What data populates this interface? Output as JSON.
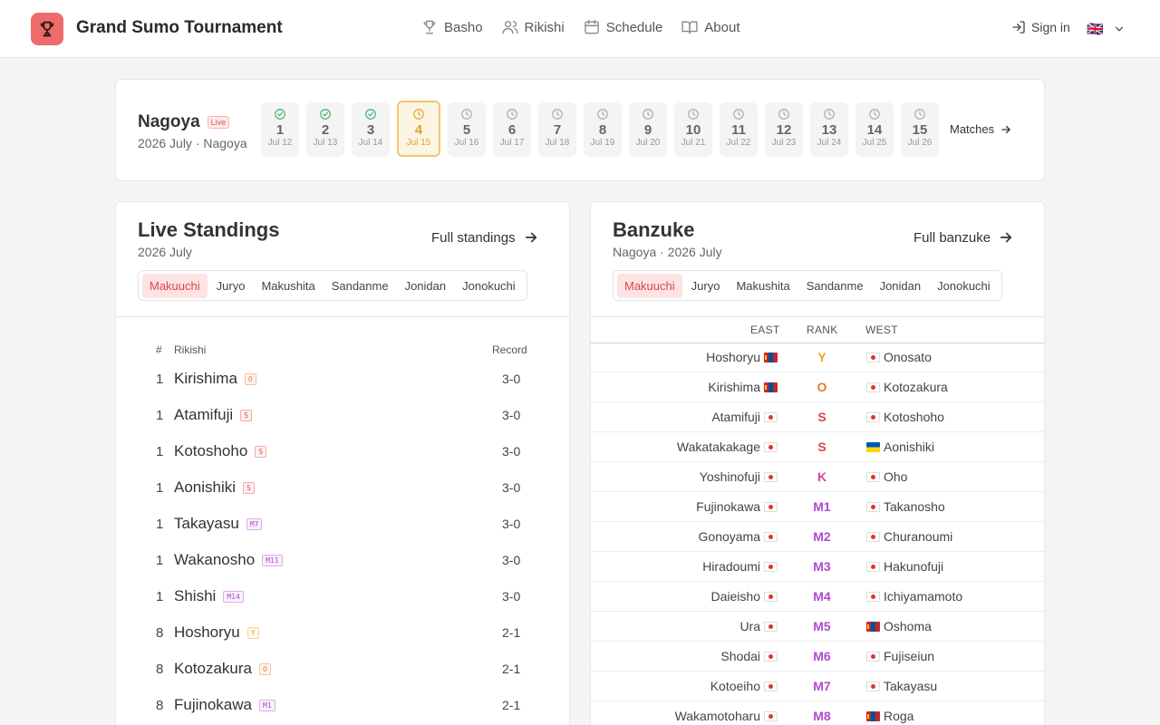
{
  "header": {
    "title": "Grand Sumo Tournament",
    "nav": [
      {
        "label": "Basho",
        "icon": "trophy-icon"
      },
      {
        "label": "Rikishi",
        "icon": "users-icon"
      },
      {
        "label": "Schedule",
        "icon": "calendar-icon"
      },
      {
        "label": "About",
        "icon": "book-icon"
      }
    ],
    "signin": "Sign in",
    "language_flag": "🇬🇧"
  },
  "basho": {
    "name": "Nagoya",
    "live": "Live",
    "subtitle": "2026 July · Nagoya",
    "days": [
      {
        "num": "1",
        "date": "Jul 12",
        "state": "done"
      },
      {
        "num": "2",
        "date": "Jul 13",
        "state": "done"
      },
      {
        "num": "3",
        "date": "Jul 14",
        "state": "done"
      },
      {
        "num": "4",
        "date": "Jul 15",
        "state": "active"
      },
      {
        "num": "5",
        "date": "Jul 16",
        "state": "future"
      },
      {
        "num": "6",
        "date": "Jul 17",
        "state": "future"
      },
      {
        "num": "7",
        "date": "Jul 18",
        "state": "future"
      },
      {
        "num": "8",
        "date": "Jul 19",
        "state": "future"
      },
      {
        "num": "9",
        "date": "Jul 20",
        "state": "future"
      },
      {
        "num": "10",
        "date": "Jul 21",
        "state": "future"
      },
      {
        "num": "11",
        "date": "Jul 22",
        "state": "future"
      },
      {
        "num": "12",
        "date": "Jul 23",
        "state": "future"
      },
      {
        "num": "13",
        "date": "Jul 24",
        "state": "future"
      },
      {
        "num": "14",
        "date": "Jul 25",
        "state": "future"
      },
      {
        "num": "15",
        "date": "Jul 26",
        "state": "future"
      }
    ],
    "matches_link": "Matches"
  },
  "standings": {
    "title": "Live Standings",
    "subtitle": "2026 July",
    "link": "Full standings",
    "tabs": [
      "Makuuchi",
      "Juryo",
      "Makushita",
      "Sandanme",
      "Jonidan",
      "Jonokuchi"
    ],
    "active_tab": 0,
    "columns": {
      "rank": "#",
      "rikishi": "Rikishi",
      "record": "Record"
    },
    "rows": [
      {
        "rank": "1",
        "name": "Kirishima",
        "badge": "O",
        "record": "3-0"
      },
      {
        "rank": "1",
        "name": "Atamifuji",
        "badge": "S",
        "record": "3-0"
      },
      {
        "rank": "1",
        "name": "Kotoshoho",
        "badge": "S",
        "record": "3-0"
      },
      {
        "rank": "1",
        "name": "Aonishiki",
        "badge": "S",
        "record": "3-0"
      },
      {
        "rank": "1",
        "name": "Takayasu",
        "badge": "M7",
        "record": "3-0"
      },
      {
        "rank": "1",
        "name": "Wakanosho",
        "badge": "M11",
        "record": "3-0"
      },
      {
        "rank": "1",
        "name": "Shishi",
        "badge": "M14",
        "record": "3-0"
      },
      {
        "rank": "8",
        "name": "Hoshoryu",
        "badge": "Y",
        "record": "2-1"
      },
      {
        "rank": "8",
        "name": "Kotozakura",
        "badge": "O",
        "record": "2-1"
      },
      {
        "rank": "8",
        "name": "Fujinokawa",
        "badge": "M1",
        "record": "2-1"
      }
    ]
  },
  "banzuke": {
    "title": "Banzuke",
    "subtitle": "Nagoya · 2026 July",
    "link": "Full banzuke",
    "tabs": [
      "Makuuchi",
      "Juryo",
      "Makushita",
      "Sandanme",
      "Jonidan",
      "Jonokuchi"
    ],
    "active_tab": 0,
    "columns": {
      "east": "EAST",
      "rank": "RANK",
      "west": "WEST"
    },
    "rows": [
      {
        "east": "Hoshoryu",
        "east_flag": "mn",
        "rank": "Y",
        "west": "Onosato",
        "west_flag": "jp"
      },
      {
        "east": "Kirishima",
        "east_flag": "mn",
        "rank": "O",
        "west": "Kotozakura",
        "west_flag": "jp"
      },
      {
        "east": "Atamifuji",
        "east_flag": "jp",
        "rank": "S",
        "west": "Kotoshoho",
        "west_flag": "jp"
      },
      {
        "east": "Wakatakakage",
        "east_flag": "jp",
        "rank": "S",
        "west": "Aonishiki",
        "west_flag": "ua"
      },
      {
        "east": "Yoshinofuji",
        "east_flag": "jp",
        "rank": "K",
        "west": "Oho",
        "west_flag": "jp"
      },
      {
        "east": "Fujinokawa",
        "east_flag": "jp",
        "rank": "M1",
        "west": "Takanosho",
        "west_flag": "jp"
      },
      {
        "east": "Gonoyama",
        "east_flag": "jp",
        "rank": "M2",
        "west": "Churanoumi",
        "west_flag": "jp"
      },
      {
        "east": "Hiradoumi",
        "east_flag": "jp",
        "rank": "M3",
        "west": "Hakunofuji",
        "west_flag": "jp"
      },
      {
        "east": "Daieisho",
        "east_flag": "jp",
        "rank": "M4",
        "west": "Ichiyamamoto",
        "west_flag": "jp"
      },
      {
        "east": "Ura",
        "east_flag": "jp",
        "rank": "M5",
        "west": "Oshoma",
        "west_flag": "mn"
      },
      {
        "east": "Shodai",
        "east_flag": "jp",
        "rank": "M6",
        "west": "Fujiseiun",
        "west_flag": "jp"
      },
      {
        "east": "Kotoeiho",
        "east_flag": "jp",
        "rank": "M7",
        "west": "Takayasu",
        "west_flag": "jp"
      },
      {
        "east": "Wakamotoharu",
        "east_flag": "jp",
        "rank": "M8",
        "west": "Roga",
        "west_flag": "mn"
      }
    ]
  },
  "rank_colors": {
    "Y": "#e6a817",
    "O": "#e8772e",
    "S": "#d84848",
    "K": "#d44a9a",
    "M": "#b04ad1"
  }
}
